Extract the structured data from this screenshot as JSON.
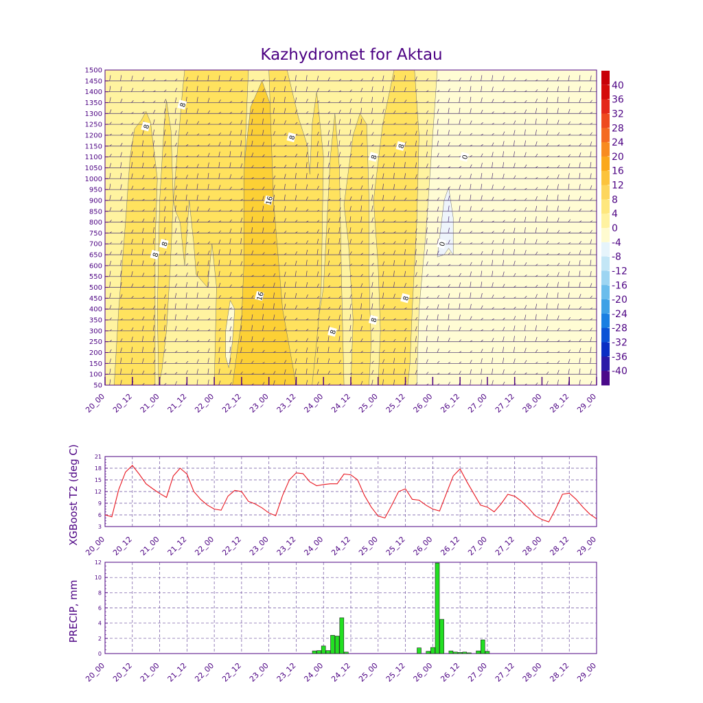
{
  "title": "Kazhydromet for Aktau",
  "colors": {
    "ink": "#4b0082",
    "contour_line": "#6b6b6b",
    "t2_line": "#e8141e",
    "bar_fill": "#22e022",
    "bar_edge": "#1a1a1a",
    "grid": "#6a4c9c",
    "barb": "#4a2c72",
    "bands": [
      {
        "from": 0,
        "to": 4,
        "color": "#fffcd4"
      },
      {
        "from": 4,
        "to": 8,
        "color": "#fff3a0"
      },
      {
        "from": 8,
        "to": 12,
        "color": "#ffe25e"
      },
      {
        "from": 12,
        "to": 16,
        "color": "#fcd035"
      },
      {
        "from": 16,
        "to": 20,
        "color": "#fbbd1a"
      }
    ]
  },
  "time_ticks": [
    "20_00",
    "20_12",
    "21_00",
    "21_12",
    "22_00",
    "22_12",
    "23_00",
    "23_12",
    "24_00",
    "24_12",
    "25_00",
    "25_12",
    "26_00",
    "26_12",
    "27_00",
    "27_12",
    "28_00",
    "28_12",
    "29_00"
  ],
  "chart_data": [
    {
      "type": "heatmap",
      "name": "cross-section",
      "y_ticks": [
        "1500",
        "1450",
        "1400",
        "1350",
        "1300",
        "1250",
        "1200",
        "1150",
        "1100",
        "1050",
        "1000",
        "950",
        "900",
        "850",
        "800",
        "750",
        "700",
        "650",
        "600",
        "550",
        "500",
        "450",
        "400",
        "350",
        "300",
        "250",
        "200",
        "150",
        "100",
        "50"
      ],
      "ylim": [
        50,
        1500
      ],
      "xlim": [
        0,
        108
      ],
      "colorbar": {
        "labels": [
          "40",
          "36",
          "32",
          "28",
          "24",
          "20",
          "16",
          "12",
          "8",
          "4",
          "0",
          "-4",
          "-8",
          "-12",
          "-16",
          "-20",
          "-24",
          "-28",
          "-32",
          "-36",
          "-40"
        ],
        "colors": [
          "#d40a0a",
          "#e4281a",
          "#ee4a1f",
          "#f46a22",
          "#f88b20",
          "#fba81c",
          "#fcc33d",
          "#fdd65e",
          "#fee77e",
          "#fff2a0",
          "#fffbd0",
          "#e6f4fb",
          "#c3e6f6",
          "#9dd5f2",
          "#6bbdec",
          "#3fa1e6",
          "#1a7fe2",
          "#0b52d6",
          "#0a2ec4",
          "#2a1aa8",
          "#4a0a8a"
        ]
      },
      "contour_labels": [
        {
          "text": "8",
          "x": 9,
          "y": 1240
        },
        {
          "text": "8",
          "x": 17,
          "y": 1340
        },
        {
          "text": "8",
          "x": 11,
          "y": 650
        },
        {
          "text": "8",
          "x": 13,
          "y": 700
        },
        {
          "text": "8",
          "x": 41,
          "y": 1190
        },
        {
          "text": "16",
          "x": 36,
          "y": 900
        },
        {
          "text": "16",
          "x": 34,
          "y": 460
        },
        {
          "text": "8",
          "x": 50,
          "y": 295
        },
        {
          "text": "8",
          "x": 59,
          "y": 1100
        },
        {
          "text": "8",
          "x": 65,
          "y": 1150
        },
        {
          "text": "8",
          "x": 59,
          "y": 350
        },
        {
          "text": "8",
          "x": 66,
          "y": 450
        },
        {
          "text": "0",
          "x": 74,
          "y": 700
        },
        {
          "text": "0",
          "x": 79,
          "y": 1100
        }
      ],
      "regions": [
        {
          "band": 4,
          "points": [
            [
              29,
              50
            ],
            [
              31,
              380
            ],
            [
              33,
              680
            ],
            [
              34.5,
              880
            ],
            [
              36,
              930
            ],
            [
              37.5,
              700
            ],
            [
              38.5,
              380
            ],
            [
              40,
              50
            ]
          ]
        },
        {
          "band": 3,
          "points": [
            [
              27,
              50
            ],
            [
              28.5,
              600
            ],
            [
              30.5,
              1050
            ],
            [
              32,
              1330
            ],
            [
              34.5,
              1450
            ],
            [
              36.5,
              1330
            ],
            [
              37,
              1100
            ],
            [
              38,
              800
            ],
            [
              39.5,
              520
            ],
            [
              41.5,
              250
            ],
            [
              42,
              50
            ]
          ]
        },
        {
          "band": 3,
          "points": [
            [
              4,
              50
            ],
            [
              5.5,
              350
            ],
            [
              7,
              600
            ],
            [
              8,
              750
            ],
            [
              8.8,
              650
            ],
            [
              9.5,
              330
            ],
            [
              10,
              50
            ]
          ]
        },
        {
          "band": 3,
          "points": [
            [
              61.5,
              50
            ],
            [
              62,
              170
            ],
            [
              63,
              230
            ],
            [
              64,
              50
            ]
          ]
        },
        {
          "band": 2,
          "points": [
            [
              2,
              50
            ],
            [
              3,
              400
            ],
            [
              4.5,
              800
            ],
            [
              5.5,
              1100
            ],
            [
              6.5,
              1230
            ],
            [
              8,
              1270
            ],
            [
              9,
              1310
            ],
            [
              10,
              1260
            ],
            [
              11.5,
              1000
            ],
            [
              11,
              700
            ],
            [
              11,
              330
            ],
            [
              11,
              50
            ]
          ]
        },
        {
          "band": 2,
          "points": [
            [
              11.5,
              400
            ],
            [
              12,
              900
            ],
            [
              13,
              1250
            ],
            [
              13.5,
              1360
            ],
            [
              14.5,
              1220
            ],
            [
              15,
              900
            ],
            [
              14.3,
              580
            ],
            [
              13.5,
              300
            ],
            [
              12.5,
              120
            ],
            [
              11.8,
              50
            ]
          ]
        },
        {
          "band": 2,
          "points": [
            [
              15,
              900
            ],
            [
              17,
              1400
            ],
            [
              17.5,
              1500
            ],
            [
              31.5,
              1500
            ],
            [
              31,
              1250
            ],
            [
              30.5,
              1000
            ],
            [
              30.5,
              600
            ],
            [
              30,
              350
            ],
            [
              28,
              50
            ],
            [
              43.5,
              50
            ],
            [
              46,
              240
            ],
            [
              48,
              500
            ],
            [
              49.5,
              1100
            ],
            [
              50.5,
              1300
            ],
            [
              51.5,
              1050
            ],
            [
              52,
              500
            ],
            [
              52.5,
              50
            ],
            [
              24,
              50
            ],
            [
              24.5,
              500
            ],
            [
              23.5,
              700
            ],
            [
              22.5,
              500
            ],
            [
              20,
              560
            ],
            [
              19.5,
              700
            ],
            [
              18.5,
              900
            ],
            [
              17.5,
              600
            ],
            [
              16.5,
              800
            ],
            [
              15.5,
              850
            ]
          ]
        },
        {
          "band": 2,
          "points": [
            [
              36,
              1500
            ],
            [
              40,
              1500
            ],
            [
              42.5,
              1280
            ],
            [
              44.5,
              1150
            ],
            [
              45,
              1020
            ],
            [
              45.5,
              1250
            ],
            [
              46.5,
              1400
            ],
            [
              48,
              1100
            ],
            [
              47.5,
              500
            ],
            [
              46.5,
              250
            ],
            [
              45.5,
              50
            ],
            [
              42,
              50
            ],
            [
              39,
              400
            ],
            [
              37,
              900
            ]
          ]
        },
        {
          "band": 2,
          "points": [
            [
              52.5,
              880
            ],
            [
              54.5,
              1200
            ],
            [
              56,
              1300
            ],
            [
              57.5,
              1250
            ],
            [
              58,
              900
            ],
            [
              58,
              600
            ],
            [
              58.2,
              400
            ],
            [
              58.5,
              250
            ],
            [
              58,
              50
            ],
            [
              54,
              50
            ],
            [
              54.5,
              350
            ],
            [
              53.5,
              700
            ]
          ]
        },
        {
          "band": 2,
          "points": [
            [
              59,
              900
            ],
            [
              61,
              1250
            ],
            [
              62.5,
              1400
            ],
            [
              63.5,
              1500
            ],
            [
              68,
              1500
            ],
            [
              69,
              1200
            ],
            [
              68.5,
              800
            ],
            [
              67.5,
              400
            ],
            [
              67,
              150
            ],
            [
              66.5,
              50
            ],
            [
              60,
              50
            ],
            [
              60.5,
              300
            ],
            [
              60,
              600
            ]
          ]
        },
        {
          "band": 0,
          "points": [
            [
              68.5,
              50
            ],
            [
              69,
              400
            ],
            [
              70.5,
              750
            ],
            [
              71.5,
              1050
            ],
            [
              73,
              1500
            ],
            [
              108,
              1500
            ],
            [
              108,
              50
            ]
          ]
        },
        {
          "band": 0,
          "points": [
            [
              26.5,
              300
            ],
            [
              27.5,
              440
            ],
            [
              28.5,
              400
            ],
            [
              28,
              250
            ],
            [
              27.2,
              130
            ],
            [
              26.5,
              180
            ]
          ]
        }
      ],
      "cold_patch": [
        [
          73,
          640
        ],
        [
          74.5,
          900
        ],
        [
          75.5,
          960
        ],
        [
          76.5,
          820
        ],
        [
          76.5,
          650
        ],
        [
          75.5,
          680
        ],
        [
          74.5,
          650
        ]
      ]
    },
    {
      "type": "line",
      "name": "t2",
      "ylabel": "XGBoost T2 (deg C)",
      "y_ticks": [
        "3",
        "6",
        "9",
        "12",
        "15",
        "18",
        "21"
      ],
      "ylim": [
        3,
        21
      ],
      "xlim": [
        0,
        108
      ],
      "series": [
        {
          "x": [
            0,
            1.5,
            3,
            4.5,
            6,
            7.5,
            9,
            10.5,
            12,
            13.5,
            15,
            16.5,
            18,
            19.5,
            21,
            22.5,
            24,
            25.5,
            27,
            28.5,
            30,
            31.5,
            33,
            34.5,
            36,
            37.5,
            39,
            40.5,
            42,
            43.5,
            45,
            46.5,
            48,
            49.5,
            51,
            52.5,
            54,
            55.5,
            57,
            58.5,
            60,
            61.5,
            63,
            64.5,
            66,
            67.5,
            69,
            70.5,
            72,
            73.5,
            75,
            76.5,
            78,
            79.5,
            81,
            82.5,
            84,
            85.5,
            87,
            88.5,
            90,
            91.5,
            93,
            94.5,
            96,
            97.5,
            99,
            100.5,
            102,
            103.5,
            105,
            106.5,
            108
          ],
          "y": [
            6,
            5.5,
            12.5,
            17,
            18.7,
            16.5,
            14,
            12.7,
            11.5,
            10.5,
            16,
            18,
            16.5,
            12,
            10,
            8.5,
            7.5,
            7.2,
            10.8,
            12.3,
            12,
            9.5,
            8.8,
            7.8,
            6.5,
            5.8,
            11,
            15,
            16.8,
            16.6,
            14.5,
            13.5,
            13.8,
            14,
            14,
            16.5,
            16.3,
            15,
            11,
            8,
            5.7,
            5.2,
            8.5,
            12,
            12.7,
            10,
            9.8,
            8.5,
            7.5,
            7,
            11.5,
            16,
            17.8,
            14.5,
            11.5,
            8.5,
            8,
            6.8,
            8.8,
            11.3,
            10.8,
            9.5,
            7.8,
            5.8,
            4.8,
            4.2,
            7.5,
            11.3,
            11.6,
            10,
            8,
            6.2,
            5
          ]
        }
      ]
    },
    {
      "type": "bar",
      "name": "precip",
      "ylabel": "PRECIP, mm",
      "y_ticks": [
        "0",
        "2",
        "4",
        "6",
        "8",
        "10",
        "12"
      ],
      "ylim": [
        0,
        12
      ],
      "xlim": [
        0,
        108
      ],
      "x": [
        46,
        47,
        48,
        49,
        50,
        51,
        52,
        53,
        69,
        71,
        72,
        73,
        74,
        76,
        77,
        78,
        79,
        80,
        82,
        83,
        84
      ],
      "values": [
        0.35,
        0.4,
        1.0,
        0.4,
        2.4,
        2.3,
        4.7,
        0.2,
        0.75,
        0.3,
        0.8,
        11.9,
        4.5,
        0.35,
        0.2,
        0.15,
        0.2,
        0.1,
        0.35,
        1.8,
        0.3
      ]
    }
  ]
}
